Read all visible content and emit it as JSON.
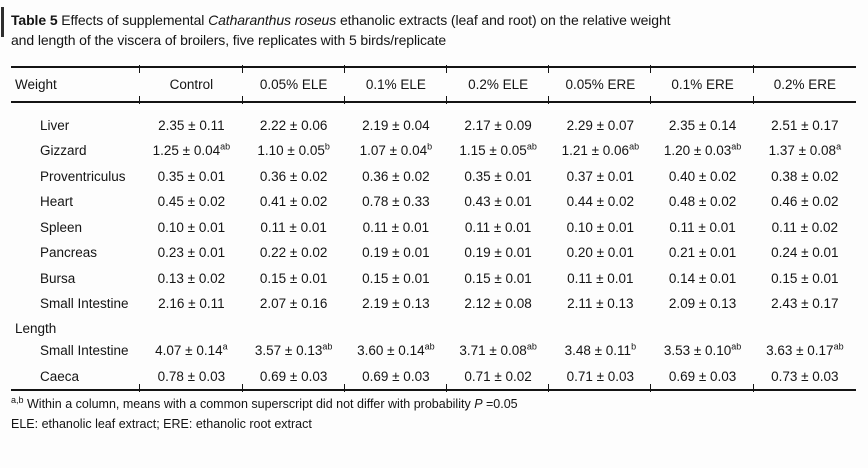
{
  "colors": {
    "text": "#141414",
    "rule": "#141414",
    "background": "#fdfdfd"
  },
  "caption": {
    "bold": "Table 5",
    "pre_italic": " Effects of supplemental ",
    "italic": "Catharanthus roseus",
    "line1_rest": " ethanolic extracts (leaf and root) on the relative weight",
    "line2": "and length of the viscera of broilers, five replicates with 5 birds/replicate"
  },
  "table": {
    "header": [
      "Weight",
      "Control",
      "0.05% ELE",
      "0.1% ELE",
      "0.2% ELE",
      "0.05% ERE",
      "0.1% ERE",
      "0.2% ERE"
    ],
    "sections": [
      {
        "rows": [
          {
            "label": "Liver",
            "values": [
              "2.35 ± 0.11",
              "2.22 ± 0.06",
              "2.19 ± 0.04",
              "2.17 ± 0.09",
              "2.29 ± 0.07",
              "2.35 ± 0.14",
              "2.51 ± 0.17"
            ]
          },
          {
            "label": "Gizzard",
            "values": [
              "1.25 ± 0.04^ab",
              "1.10 ± 0.05^b",
              "1.07 ± 0.04^b",
              "1.15 ± 0.05^ab",
              "1.21 ± 0.06^ab",
              "1.20 ± 0.03^ab",
              "1.37 ± 0.08^a"
            ]
          },
          {
            "label": "Proventriculus",
            "values": [
              "0.35 ± 0.01",
              "0.36 ± 0.02",
              "0.36 ± 0.02",
              "0.35 ± 0.01",
              "0.37 ± 0.01",
              "0.40 ± 0.02",
              "0.38 ± 0.02"
            ]
          },
          {
            "label": "Heart",
            "values": [
              "0.45 ± 0.02",
              "0.41 ± 0.02",
              "0.78 ± 0.33",
              "0.43 ± 0.01",
              "0.44 ± 0.02",
              "0.48 ± 0.02",
              "0.46 ± 0.02"
            ]
          },
          {
            "label": "Spleen",
            "values": [
              "0.10 ± 0.01",
              "0.11 ± 0.01",
              "0.11 ± 0.01",
              "0.11 ± 0.01",
              "0.10 ± 0.01",
              "0.11 ± 0.01",
              "0.11 ± 0.02"
            ]
          },
          {
            "label": "Pancreas",
            "values": [
              "0.23 ± 0.01",
              "0.22 ± 0.02",
              "0.19 ± 0.01",
              "0.19 ± 0.01",
              "0.20 ± 0.01",
              "0.21 ± 0.01",
              "0.24 ± 0.01"
            ]
          },
          {
            "label": "Bursa",
            "values": [
              "0.13 ± 0.02",
              "0.15 ± 0.01",
              "0.15 ± 0.01",
              "0.15 ± 0.01",
              "0.11 ± 0.01",
              "0.14 ± 0.01",
              "0.15 ± 0.01"
            ]
          },
          {
            "label": "Small Intestine",
            "values": [
              "2.16 ± 0.11",
              "2.07 ± 0.16",
              "2.19 ± 0.13",
              "2.12 ± 0.08",
              "2.11 ± 0.13",
              "2.09 ± 0.13",
              "2.43 ± 0.17"
            ]
          }
        ]
      },
      {
        "label": "Length",
        "rows": [
          {
            "label": "Small Intestine",
            "values": [
              "4.07 ± 0.14^a",
              "3.57 ± 0.13^ab",
              "3.60 ± 0.14^ab",
              "3.71 ± 0.08^ab",
              "3.48 ± 0.11^b",
              "3.53 ± 0.10^ab",
              "3.63 ± 0.17^ab"
            ]
          },
          {
            "label": "Caeca",
            "values": [
              "0.78 ± 0.03",
              "0.69 ± 0.03",
              "0.69 ± 0.03",
              "0.71 ± 0.02",
              "0.71 ± 0.03",
              "0.69 ± 0.03",
              "0.73 ± 0.03"
            ]
          }
        ]
      }
    ]
  },
  "footnotes": {
    "sup": "a,b",
    "line1": " Within a column, means with a common superscript did not differ with probability ",
    "p_symbol": "P",
    "p_rest": " =0.05",
    "line2": "ELE: ethanolic leaf extract; ERE: ethanolic root extract"
  }
}
